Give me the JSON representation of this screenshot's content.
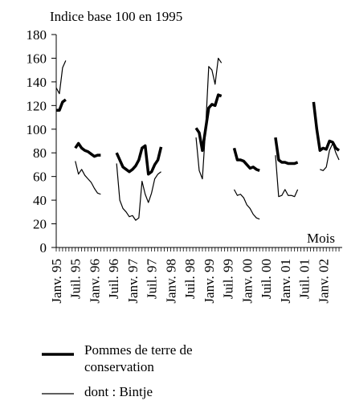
{
  "chart_data": {
    "type": "line",
    "y_label": "Indice base 100 en 1995",
    "x_label": "Mois",
    "categories": [
      "Janv. 95",
      null,
      null,
      null,
      null,
      null,
      "Juil. 95",
      null,
      null,
      null,
      null,
      null,
      "Janv. 96",
      null,
      null,
      null,
      null,
      null,
      "Juil. 96",
      null,
      null,
      null,
      null,
      null,
      "Janv. 97",
      null,
      null,
      null,
      null,
      null,
      "Juil. 97",
      null,
      null,
      null,
      null,
      null,
      "Janv. 98",
      null,
      null,
      null,
      null,
      null,
      "Juil. 98",
      null,
      null,
      null,
      null,
      null,
      "Janv. 99",
      null,
      null,
      null,
      null,
      null,
      "Juil. 99",
      null,
      null,
      null,
      null,
      null,
      "Janv. 00",
      null,
      null,
      null,
      null,
      null,
      "Juil. 00",
      null,
      null,
      null,
      null,
      null,
      "Janv. 01",
      null,
      null,
      null,
      null,
      null,
      "Juil. 01",
      null,
      null,
      null,
      null,
      null,
      "Janv. 02",
      null,
      null,
      null,
      null,
      null
    ],
    "series": [
      {
        "name": "Pommes de terre de conservation",
        "color": "#000000",
        "width": 3.5,
        "values": [
          116,
          116,
          123,
          125,
          null,
          null,
          84,
          88,
          84,
          82,
          81,
          79,
          77,
          78,
          78,
          null,
          null,
          null,
          null,
          80,
          74,
          68,
          66,
          64,
          66,
          69,
          74,
          84,
          86,
          62,
          64,
          70,
          74,
          85,
          null,
          null,
          null,
          null,
          null,
          null,
          null,
          null,
          null,
          null,
          101,
          97,
          82,
          100,
          118,
          121,
          120,
          129,
          128,
          null,
          null,
          null,
          84,
          74,
          74,
          73,
          70,
          67,
          68,
          66,
          65,
          null,
          null,
          null,
          null,
          93,
          74,
          72,
          72,
          71,
          71,
          71,
          72,
          null,
          null,
          null,
          null,
          123,
          100,
          82,
          84,
          83,
          90,
          89,
          84,
          82
        ]
      },
      {
        "name": "dont : Bintje",
        "color": "#000000",
        "width": 1.2,
        "values": [
          135,
          130,
          152,
          158,
          null,
          null,
          73,
          62,
          66,
          61,
          58,
          55,
          50,
          46,
          45,
          null,
          null,
          null,
          null,
          71,
          40,
          33,
          30,
          26,
          27,
          23,
          25,
          56,
          45,
          38,
          46,
          58,
          62,
          64,
          null,
          null,
          null,
          null,
          null,
          null,
          null,
          null,
          null,
          null,
          93,
          65,
          58,
          100,
          153,
          150,
          138,
          160,
          156,
          null,
          null,
          null,
          49,
          44,
          45,
          42,
          36,
          33,
          28,
          25,
          24,
          null,
          null,
          null,
          null,
          78,
          43,
          44,
          49,
          44,
          44,
          43,
          49,
          null,
          null,
          null,
          null,
          null,
          null,
          66,
          65,
          68,
          82,
          88,
          80,
          74
        ]
      }
    ],
    "ylim": [
      0,
      180
    ],
    "yticks": [
      0,
      20,
      40,
      60,
      80,
      100,
      120,
      140,
      160,
      180
    ],
    "grid": false,
    "legend": "bottom"
  }
}
